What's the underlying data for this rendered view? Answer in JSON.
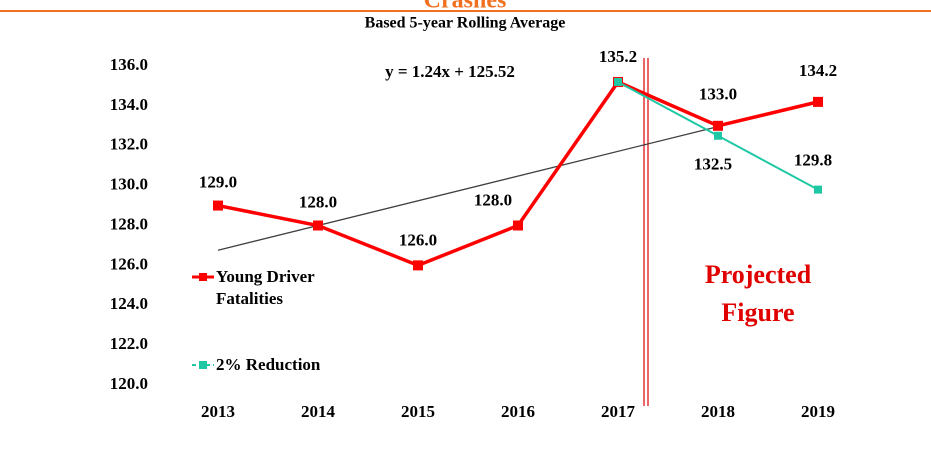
{
  "chart_data": {
    "type": "line",
    "title": "Crashes",
    "subtitle": "Based 5-year Rolling Average",
    "categories": [
      "2013",
      "2014",
      "2015",
      "2016",
      "2017",
      "2018",
      "2019"
    ],
    "series": [
      {
        "name": "Young Driver Fatalities",
        "color": "#ff0000",
        "values": [
          129.0,
          128.0,
          126.0,
          128.0,
          135.2,
          133.0,
          134.2
        ],
        "value_labels": [
          "129.0",
          "128.0",
          "126.0",
          "128.0",
          "135.2",
          "133.0",
          "134.2"
        ]
      },
      {
        "name": "2% Reduction",
        "color": "#1ec8a5",
        "values": [
          null,
          null,
          null,
          null,
          135.2,
          132.5,
          129.8
        ],
        "value_labels": [
          null,
          null,
          null,
          null,
          null,
          "132.5",
          "129.8"
        ]
      }
    ],
    "trendline": {
      "slope": 1.24,
      "intercept": 125.52,
      "label": "y = 1.24x + 125.52",
      "color": "#404040"
    },
    "annotation": "Projected Figure",
    "ylim": [
      120,
      136
    ],
    "yticks": [
      {
        "value": 120,
        "label": "120.0"
      },
      {
        "value": 122,
        "label": "122.0"
      },
      {
        "value": 124,
        "label": "124.0"
      },
      {
        "value": 126,
        "label": "126.0"
      },
      {
        "value": 128,
        "label": "128.0"
      },
      {
        "value": 130,
        "label": "130.0"
      },
      {
        "value": 132,
        "label": "132.0"
      },
      {
        "value": 134,
        "label": "134.0"
      },
      {
        "value": 136,
        "label": "136.0"
      }
    ],
    "grid": false
  }
}
